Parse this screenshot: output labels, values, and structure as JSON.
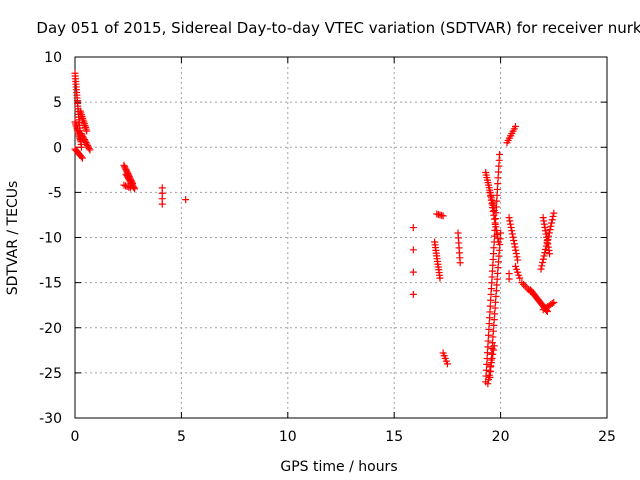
{
  "chart_data": {
    "type": "scatter",
    "title": "Day 051 of 2015, Sidereal Day-to-day VTEC variation (SDTVAR) for receiver nurk",
    "xlabel": "GPS time / hours",
    "ylabel": "SDTVAR / TECUs",
    "xlim": [
      0,
      25
    ],
    "ylim": [
      -30,
      10
    ],
    "xticks": [
      0,
      5,
      10,
      15,
      20,
      25
    ],
    "yticks": [
      10,
      5,
      0,
      -5,
      -10,
      -15,
      -20,
      -25,
      -30
    ],
    "grid": true,
    "marker": "+",
    "color": "#ff0000",
    "segments": [
      {
        "x": [
          0.0,
          0.3
        ],
        "y": [
          8.2,
          0.0
        ],
        "n": 28
      },
      {
        "x": [
          0.0,
          0.25
        ],
        "y": [
          2.8,
          0.8
        ],
        "n": 10
      },
      {
        "x": [
          0.25,
          0.55
        ],
        "y": [
          4.0,
          1.8
        ],
        "n": 12
      },
      {
        "x": [
          0.3,
          0.7
        ],
        "y": [
          1.5,
          -0.3
        ],
        "n": 12
      },
      {
        "x": [
          0.0,
          0.35
        ],
        "y": [
          -0.2,
          -1.2
        ],
        "n": 8
      },
      {
        "x": [
          2.3,
          2.7
        ],
        "y": [
          -2.0,
          -4.0
        ],
        "n": 14
      },
      {
        "x": [
          2.4,
          2.8
        ],
        "y": [
          -3.0,
          -4.6
        ],
        "n": 12
      },
      {
        "x": [
          2.3,
          2.6
        ],
        "y": [
          -4.2,
          -4.5
        ],
        "n": 5
      },
      {
        "x": [
          4.1,
          4.1
        ],
        "y": [
          -4.5,
          -6.3
        ],
        "n": 4
      },
      {
        "x": [
          5.2,
          5.2
        ],
        "y": [
          -5.8,
          -5.8
        ],
        "n": 1
      },
      {
        "x": [
          15.9,
          15.9
        ],
        "y": [
          -8.9,
          -16.3
        ],
        "n": 4
      },
      {
        "x": [
          16.9,
          17.15
        ],
        "y": [
          -10.5,
          -14.5
        ],
        "n": 14
      },
      {
        "x": [
          17.0,
          17.3
        ],
        "y": [
          -7.4,
          -7.6
        ],
        "n": 5
      },
      {
        "x": [
          17.3,
          17.5
        ],
        "y": [
          -22.8,
          -24.0
        ],
        "n": 5
      },
      {
        "x": [
          18.0,
          18.1
        ],
        "y": [
          -9.5,
          -12.8
        ],
        "n": 7
      },
      {
        "x": [
          19.3,
          19.7
        ],
        "y": [
          -2.8,
          -7.0
        ],
        "n": 16
      },
      {
        "x": [
          19.5,
          19.9
        ],
        "y": [
          -5.0,
          -10.5
        ],
        "n": 14
      },
      {
        "x": [
          19.3,
          19.95
        ],
        "y": [
          -26.0,
          -0.8
        ],
        "n": 40
      },
      {
        "x": [
          19.5,
          20.0
        ],
        "y": [
          -25.5,
          -9.5
        ],
        "n": 26
      },
      {
        "x": [
          19.4,
          19.7
        ],
        "y": [
          -26.2,
          -22.0
        ],
        "n": 10
      },
      {
        "x": [
          20.3,
          20.7
        ],
        "y": [
          0.5,
          2.3
        ],
        "n": 8
      },
      {
        "x": [
          20.4,
          20.8
        ],
        "y": [
          -7.8,
          -12.5
        ],
        "n": 14
      },
      {
        "x": [
          20.7,
          20.9
        ],
        "y": [
          -13.2,
          -14.5
        ],
        "n": 5
      },
      {
        "x": [
          20.4,
          20.4
        ],
        "y": [
          -14.0,
          -14.6
        ],
        "n": 2
      },
      {
        "x": [
          21.0,
          21.4
        ],
        "y": [
          -15.0,
          -16.0
        ],
        "n": 6
      },
      {
        "x": [
          21.4,
          22.2
        ],
        "y": [
          -15.8,
          -18.2
        ],
        "n": 22
      },
      {
        "x": [
          21.9,
          22.5
        ],
        "y": [
          -13.5,
          -7.3
        ],
        "n": 18
      },
      {
        "x": [
          22.0,
          22.3
        ],
        "y": [
          -7.8,
          -11.8
        ],
        "n": 12
      },
      {
        "x": [
          22.0,
          22.5
        ],
        "y": [
          -18.0,
          -17.2
        ],
        "n": 8
      }
    ]
  }
}
